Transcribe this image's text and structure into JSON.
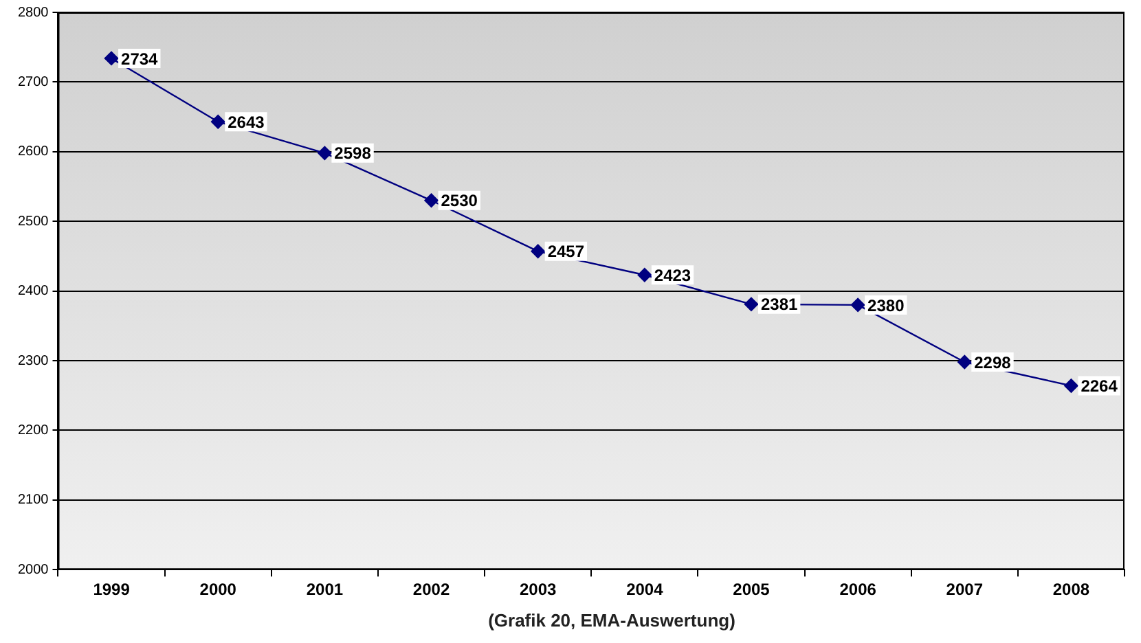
{
  "chart_data": {
    "type": "line",
    "categories": [
      "1999",
      "2000",
      "2001",
      "2002",
      "2003",
      "2004",
      "2005",
      "2006",
      "2007",
      "2008"
    ],
    "series": [
      {
        "color": "#000080",
        "values": [
          2734,
          2643,
          2598,
          2530,
          2457,
          2423,
          2381,
          2380,
          2298,
          2264
        ]
      }
    ],
    "ylim": [
      2000,
      2800
    ],
    "yticks": [
      2000,
      2100,
      2200,
      2300,
      2400,
      2500,
      2600,
      2700,
      2800
    ],
    "grid": "y",
    "legend": false,
    "marker": "diamond",
    "line_style": "solid",
    "data_labels": true,
    "annotations": [
      "(Grafik 20, EMA-Auswertung)"
    ]
  }
}
